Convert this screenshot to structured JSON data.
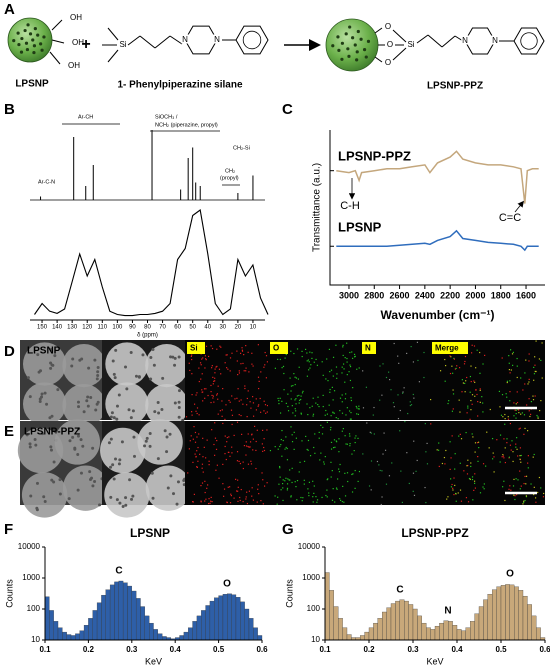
{
  "panels": [
    "A",
    "B",
    "C",
    "D",
    "E",
    "F",
    "G"
  ],
  "scheme": {
    "reactant": "LPSNP",
    "plus": "+",
    "reagent": "1- Phenylpiperazine silane",
    "product": "LPSNP-PPZ",
    "reactant_groups": [
      "OH",
      "OH",
      "OH"
    ],
    "reagent_atoms": [
      "Si",
      "N",
      "N"
    ],
    "product_atoms": [
      "O",
      "O",
      "O",
      "Si",
      "N",
      "N"
    ]
  },
  "microscopy": {
    "rows": [
      "LPSNP",
      "LPSNP-PPZ"
    ],
    "channels": [
      "Si",
      "O",
      "N",
      "Merge"
    ]
  },
  "chart_data": [
    {
      "type": "spectrum",
      "xlabel": "δ (ppm)",
      "xlim": [
        158,
        2
      ],
      "xticks": [
        150,
        140,
        130,
        120,
        110,
        100,
        90,
        80,
        70,
        60,
        50,
        40,
        30,
        20,
        10
      ],
      "ylim": [
        0,
        1
      ],
      "annotations": [
        "Ar-C-N",
        "Ar-CH",
        "SiOCH₃ /",
        "NCH₂ (piperazine, propyl)",
        "CH₂",
        "(propyl)",
        "CH₂-Si"
      ],
      "series": [
        {
          "style": "stick",
          "color": "#000000",
          "x": [
            151,
            129,
            121,
            116,
            77,
            58,
            53,
            50,
            48,
            45,
            20,
            10
          ],
          "values": [
            0.05,
            0.9,
            0.2,
            0.5,
            1.0,
            0.15,
            0.6,
            0.75,
            0.25,
            0.2,
            0.1,
            0.35
          ]
        },
        {
          "style": "line",
          "color": "#000000",
          "x": [
            155,
            150,
            145,
            140,
            135,
            130,
            125,
            120,
            115,
            110,
            105,
            100,
            95,
            90,
            85,
            80,
            75,
            70,
            65,
            60,
            55,
            50,
            45,
            40,
            35,
            30,
            25,
            20,
            15,
            10,
            5,
            0
          ],
          "values": [
            0.05,
            0.15,
            0.08,
            0.06,
            0.1,
            0.35,
            0.6,
            0.4,
            0.55,
            0.3,
            0.08,
            0.05,
            0.04,
            0.04,
            0.05,
            0.05,
            0.06,
            0.08,
            0.15,
            0.55,
            0.65,
            0.95,
            1.0,
            0.6,
            0.15,
            0.05,
            0.1,
            0.55,
            0.4,
            0.5,
            0.2,
            0.05
          ]
        }
      ]
    },
    {
      "type": "line",
      "xlabel": "Wavenumber (cm⁻¹)",
      "ylabel": "Transmittance (a.u.)",
      "xlim": [
        3150,
        1450
      ],
      "xticks": [
        3000,
        2800,
        2600,
        2400,
        2200,
        2000,
        1800,
        1600
      ],
      "ylim": [
        2,
        10
      ],
      "annotations": [
        "C-H",
        "C=C"
      ],
      "x": [
        3100,
        3000,
        2950,
        2920,
        2900,
        2800,
        2700,
        2600,
        2500,
        2400,
        2360,
        2300,
        2200,
        2150,
        2100,
        2000,
        1900,
        1800,
        1700,
        1640,
        1610,
        1590,
        1550,
        1500
      ],
      "series": [
        {
          "name": "LPSNP-PPZ",
          "color": "#c4a77d",
          "values": [
            7.9,
            7.8,
            7.9,
            7.4,
            7.8,
            7.9,
            8.0,
            8.0,
            8.1,
            8.2,
            7.8,
            8.3,
            8.6,
            8.9,
            8.5,
            8.3,
            8.2,
            8.2,
            8.1,
            8.0,
            6.2,
            7.9,
            8.0,
            8.0
          ]
        },
        {
          "name": "LPSNP",
          "color": "#2f6dbd",
          "values": [
            4.0,
            4.0,
            4.0,
            4.0,
            4.0,
            4.0,
            4.0,
            4.05,
            4.1,
            4.15,
            4.1,
            4.3,
            4.5,
            4.8,
            4.4,
            4.3,
            4.2,
            4.15,
            4.1,
            4.0,
            3.8,
            4.0,
            4.0,
            4.0
          ]
        }
      ]
    },
    {
      "type": "histogram",
      "title": "LPSNP",
      "xlabel": "KeV",
      "ylabel": "Counts",
      "color": "#2e5fa8",
      "log_y": true,
      "xlim": [
        0.1,
        0.6
      ],
      "xticks": [
        0.1,
        0.2,
        0.3,
        0.4,
        0.5,
        0.6
      ],
      "ylim": [
        10,
        10000
      ],
      "yticks": [
        10,
        100,
        1000,
        10000
      ],
      "annotations": [
        "C",
        "O"
      ],
      "bins": [
        0.1,
        0.11,
        0.12,
        0.13,
        0.14,
        0.15,
        0.16,
        0.17,
        0.18,
        0.19,
        0.2,
        0.21,
        0.22,
        0.23,
        0.24,
        0.25,
        0.26,
        0.27,
        0.28,
        0.29,
        0.3,
        0.31,
        0.32,
        0.33,
        0.34,
        0.35,
        0.36,
        0.37,
        0.38,
        0.39,
        0.4,
        0.41,
        0.42,
        0.43,
        0.44,
        0.45,
        0.46,
        0.47,
        0.48,
        0.49,
        0.5,
        0.51,
        0.52,
        0.53,
        0.54,
        0.55,
        0.56,
        0.57,
        0.58,
        0.59,
        0.6
      ],
      "values": [
        250,
        90,
        40,
        25,
        18,
        15,
        14,
        16,
        20,
        30,
        50,
        90,
        160,
        280,
        420,
        600,
        750,
        800,
        700,
        550,
        380,
        220,
        120,
        60,
        35,
        22,
        16,
        13,
        12,
        11,
        12,
        14,
        18,
        25,
        40,
        60,
        90,
        130,
        180,
        230,
        270,
        300,
        310,
        290,
        240,
        170,
        100,
        50,
        25,
        14
      ]
    },
    {
      "type": "histogram",
      "title": "LPSNP-PPZ",
      "xlabel": "KeV",
      "ylabel": "Counts",
      "color": "#c8a87a",
      "log_y": true,
      "xlim": [
        0.1,
        0.6
      ],
      "xticks": [
        0.1,
        0.2,
        0.3,
        0.4,
        0.5,
        0.6
      ],
      "ylim": [
        10,
        10000
      ],
      "yticks": [
        10,
        100,
        1000,
        10000
      ],
      "annotations": [
        "C",
        "N",
        "O"
      ],
      "bins": [
        0.1,
        0.11,
        0.12,
        0.13,
        0.14,
        0.15,
        0.16,
        0.17,
        0.18,
        0.19,
        0.2,
        0.21,
        0.22,
        0.23,
        0.24,
        0.25,
        0.26,
        0.27,
        0.28,
        0.29,
        0.3,
        0.31,
        0.32,
        0.33,
        0.34,
        0.35,
        0.36,
        0.37,
        0.38,
        0.39,
        0.4,
        0.41,
        0.42,
        0.43,
        0.44,
        0.45,
        0.46,
        0.47,
        0.48,
        0.49,
        0.5,
        0.51,
        0.52,
        0.53,
        0.54,
        0.55,
        0.56,
        0.57,
        0.58,
        0.59,
        0.6
      ],
      "values": [
        1500,
        400,
        120,
        50,
        25,
        15,
        12,
        12,
        14,
        18,
        25,
        35,
        50,
        80,
        110,
        150,
        180,
        200,
        180,
        140,
        100,
        60,
        35,
        25,
        22,
        28,
        35,
        42,
        40,
        30,
        22,
        20,
        25,
        40,
        70,
        120,
        200,
        300,
        420,
        520,
        580,
        620,
        600,
        520,
        400,
        260,
        140,
        60,
        25,
        12
      ]
    }
  ]
}
